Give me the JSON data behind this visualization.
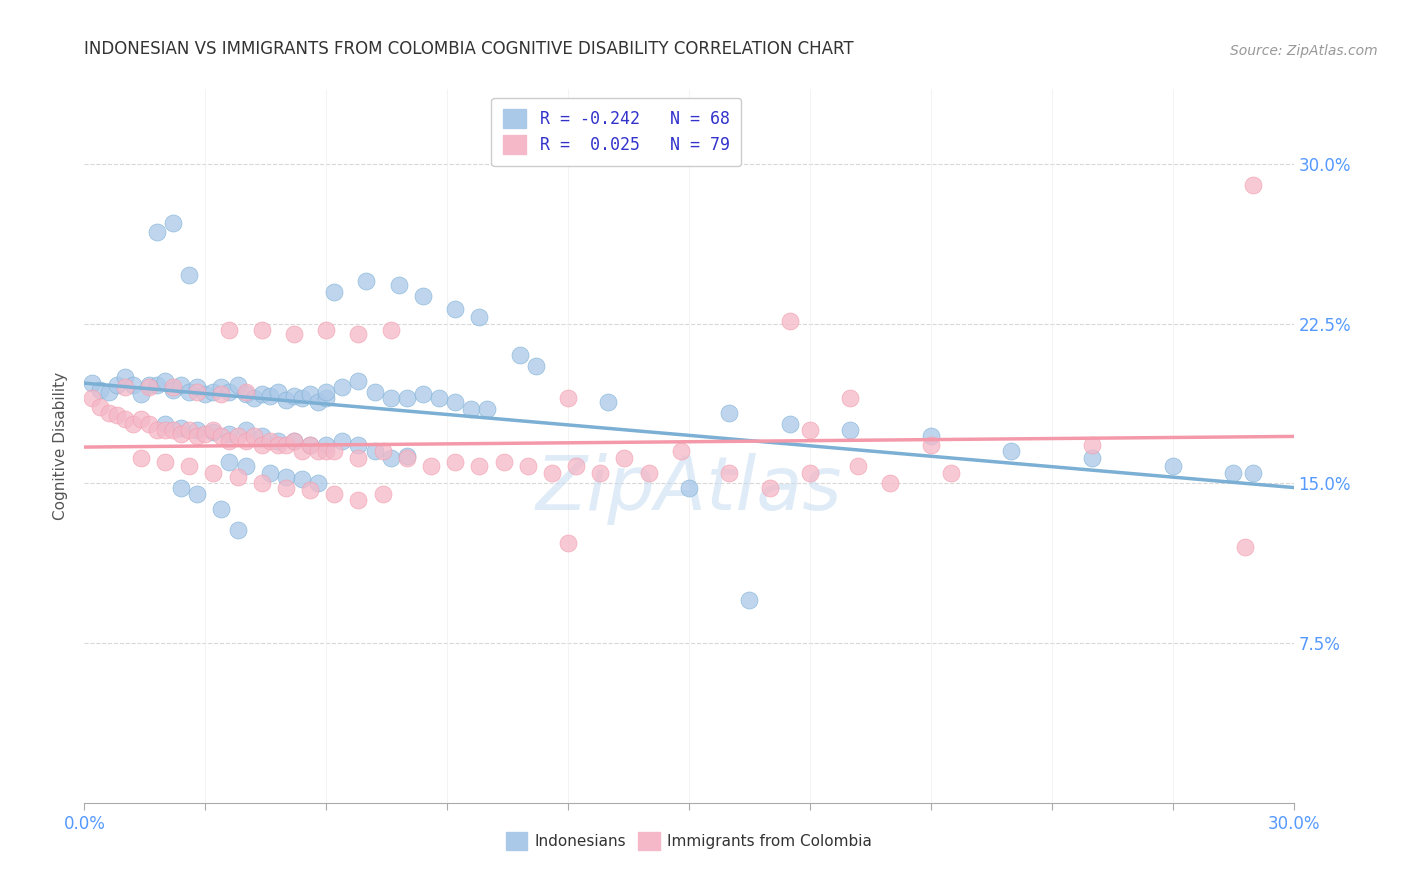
{
  "title": "INDONESIAN VS IMMIGRANTS FROM COLOMBIA COGNITIVE DISABILITY CORRELATION CHART",
  "source": "Source: ZipAtlas.com",
  "ylabel": "Cognitive Disability",
  "yticks": [
    0.075,
    0.15,
    0.225,
    0.3
  ],
  "ytick_labels": [
    "7.5%",
    "15.0%",
    "22.5%",
    "30.0%"
  ],
  "xlim": [
    0.0,
    0.3
  ],
  "ylim": [
    0.0,
    0.335
  ],
  "xtick_positions": [
    0.0,
    0.03,
    0.06,
    0.09,
    0.12,
    0.15,
    0.18,
    0.21,
    0.24,
    0.27,
    0.3
  ],
  "blue_color": "#7bafd4",
  "pink_color": "#f499aa",
  "blue_fill": "#aac8e8",
  "pink_fill": "#f4b8c8",
  "blue_scatter": [
    [
      0.002,
      0.197
    ],
    [
      0.004,
      0.194
    ],
    [
      0.006,
      0.193
    ],
    [
      0.008,
      0.196
    ],
    [
      0.01,
      0.2
    ],
    [
      0.012,
      0.196
    ],
    [
      0.014,
      0.192
    ],
    [
      0.016,
      0.196
    ],
    [
      0.018,
      0.196
    ],
    [
      0.02,
      0.198
    ],
    [
      0.022,
      0.194
    ],
    [
      0.024,
      0.196
    ],
    [
      0.026,
      0.193
    ],
    [
      0.028,
      0.195
    ],
    [
      0.03,
      0.192
    ],
    [
      0.032,
      0.193
    ],
    [
      0.034,
      0.195
    ],
    [
      0.036,
      0.193
    ],
    [
      0.038,
      0.196
    ],
    [
      0.04,
      0.192
    ],
    [
      0.042,
      0.19
    ],
    [
      0.044,
      0.192
    ],
    [
      0.046,
      0.191
    ],
    [
      0.048,
      0.193
    ],
    [
      0.05,
      0.189
    ],
    [
      0.052,
      0.191
    ],
    [
      0.054,
      0.19
    ],
    [
      0.056,
      0.192
    ],
    [
      0.058,
      0.188
    ],
    [
      0.06,
      0.19
    ],
    [
      0.02,
      0.178
    ],
    [
      0.024,
      0.176
    ],
    [
      0.028,
      0.175
    ],
    [
      0.032,
      0.174
    ],
    [
      0.036,
      0.173
    ],
    [
      0.04,
      0.175
    ],
    [
      0.044,
      0.172
    ],
    [
      0.048,
      0.17
    ],
    [
      0.052,
      0.17
    ],
    [
      0.056,
      0.168
    ],
    [
      0.06,
      0.168
    ],
    [
      0.064,
      0.17
    ],
    [
      0.068,
      0.168
    ],
    [
      0.072,
      0.165
    ],
    [
      0.076,
      0.162
    ],
    [
      0.08,
      0.163
    ],
    [
      0.036,
      0.16
    ],
    [
      0.04,
      0.158
    ],
    [
      0.046,
      0.155
    ],
    [
      0.05,
      0.153
    ],
    [
      0.054,
      0.152
    ],
    [
      0.058,
      0.15
    ],
    [
      0.024,
      0.148
    ],
    [
      0.028,
      0.145
    ],
    [
      0.034,
      0.138
    ],
    [
      0.038,
      0.128
    ],
    [
      0.018,
      0.268
    ],
    [
      0.022,
      0.272
    ],
    [
      0.026,
      0.248
    ],
    [
      0.062,
      0.24
    ],
    [
      0.07,
      0.245
    ],
    [
      0.078,
      0.243
    ],
    [
      0.084,
      0.238
    ],
    [
      0.092,
      0.232
    ],
    [
      0.098,
      0.228
    ],
    [
      0.108,
      0.21
    ],
    [
      0.112,
      0.205
    ],
    [
      0.06,
      0.193
    ],
    [
      0.064,
      0.195
    ],
    [
      0.068,
      0.198
    ],
    [
      0.072,
      0.193
    ],
    [
      0.076,
      0.19
    ],
    [
      0.08,
      0.19
    ],
    [
      0.084,
      0.192
    ],
    [
      0.088,
      0.19
    ],
    [
      0.092,
      0.188
    ],
    [
      0.096,
      0.185
    ],
    [
      0.1,
      0.185
    ],
    [
      0.13,
      0.188
    ],
    [
      0.16,
      0.183
    ],
    [
      0.175,
      0.178
    ],
    [
      0.19,
      0.175
    ],
    [
      0.21,
      0.172
    ],
    [
      0.23,
      0.165
    ],
    [
      0.25,
      0.162
    ],
    [
      0.27,
      0.158
    ],
    [
      0.29,
      0.155
    ],
    [
      0.15,
      0.148
    ],
    [
      0.165,
      0.095
    ],
    [
      0.285,
      0.155
    ]
  ],
  "pink_scatter": [
    [
      0.002,
      0.19
    ],
    [
      0.004,
      0.186
    ],
    [
      0.006,
      0.183
    ],
    [
      0.008,
      0.182
    ],
    [
      0.01,
      0.18
    ],
    [
      0.012,
      0.178
    ],
    [
      0.014,
      0.18
    ],
    [
      0.016,
      0.178
    ],
    [
      0.018,
      0.175
    ],
    [
      0.02,
      0.175
    ],
    [
      0.022,
      0.175
    ],
    [
      0.024,
      0.173
    ],
    [
      0.026,
      0.175
    ],
    [
      0.028,
      0.172
    ],
    [
      0.03,
      0.173
    ],
    [
      0.032,
      0.175
    ],
    [
      0.034,
      0.172
    ],
    [
      0.036,
      0.17
    ],
    [
      0.038,
      0.172
    ],
    [
      0.04,
      0.17
    ],
    [
      0.042,
      0.172
    ],
    [
      0.044,
      0.168
    ],
    [
      0.046,
      0.17
    ],
    [
      0.048,
      0.168
    ],
    [
      0.05,
      0.168
    ],
    [
      0.052,
      0.17
    ],
    [
      0.054,
      0.165
    ],
    [
      0.056,
      0.168
    ],
    [
      0.058,
      0.165
    ],
    [
      0.06,
      0.165
    ],
    [
      0.01,
      0.195
    ],
    [
      0.016,
      0.195
    ],
    [
      0.022,
      0.195
    ],
    [
      0.028,
      0.193
    ],
    [
      0.034,
      0.192
    ],
    [
      0.04,
      0.193
    ],
    [
      0.014,
      0.162
    ],
    [
      0.02,
      0.16
    ],
    [
      0.026,
      0.158
    ],
    [
      0.032,
      0.155
    ],
    [
      0.038,
      0.153
    ],
    [
      0.044,
      0.15
    ],
    [
      0.05,
      0.148
    ],
    [
      0.056,
      0.147
    ],
    [
      0.062,
      0.145
    ],
    [
      0.068,
      0.142
    ],
    [
      0.074,
      0.145
    ],
    [
      0.062,
      0.165
    ],
    [
      0.068,
      0.162
    ],
    [
      0.074,
      0.165
    ],
    [
      0.08,
      0.162
    ],
    [
      0.086,
      0.158
    ],
    [
      0.092,
      0.16
    ],
    [
      0.098,
      0.158
    ],
    [
      0.104,
      0.16
    ],
    [
      0.11,
      0.158
    ],
    [
      0.116,
      0.155
    ],
    [
      0.122,
      0.158
    ],
    [
      0.128,
      0.155
    ],
    [
      0.134,
      0.162
    ],
    [
      0.14,
      0.155
    ],
    [
      0.036,
      0.222
    ],
    [
      0.044,
      0.222
    ],
    [
      0.052,
      0.22
    ],
    [
      0.06,
      0.222
    ],
    [
      0.068,
      0.22
    ],
    [
      0.076,
      0.222
    ],
    [
      0.12,
      0.19
    ],
    [
      0.18,
      0.175
    ],
    [
      0.19,
      0.19
    ],
    [
      0.21,
      0.168
    ],
    [
      0.25,
      0.168
    ],
    [
      0.29,
      0.29
    ],
    [
      0.288,
      0.12
    ],
    [
      0.12,
      0.122
    ],
    [
      0.175,
      0.226
    ],
    [
      0.148,
      0.165
    ],
    [
      0.16,
      0.155
    ],
    [
      0.17,
      0.148
    ],
    [
      0.18,
      0.155
    ],
    [
      0.192,
      0.158
    ],
    [
      0.2,
      0.15
    ],
    [
      0.215,
      0.155
    ]
  ],
  "blue_line": {
    "x0": 0.0,
    "x1": 0.3,
    "y0": 0.197,
    "y1": 0.148
  },
  "pink_line": {
    "x0": 0.0,
    "x1": 0.3,
    "y0": 0.167,
    "y1": 0.172
  },
  "watermark": "ZipAtlas",
  "bg_color": "#ffffff",
  "grid_color": "#d8d8d8",
  "axis_label_color": "#5599ff",
  "tick_label_color_x": "#666666"
}
